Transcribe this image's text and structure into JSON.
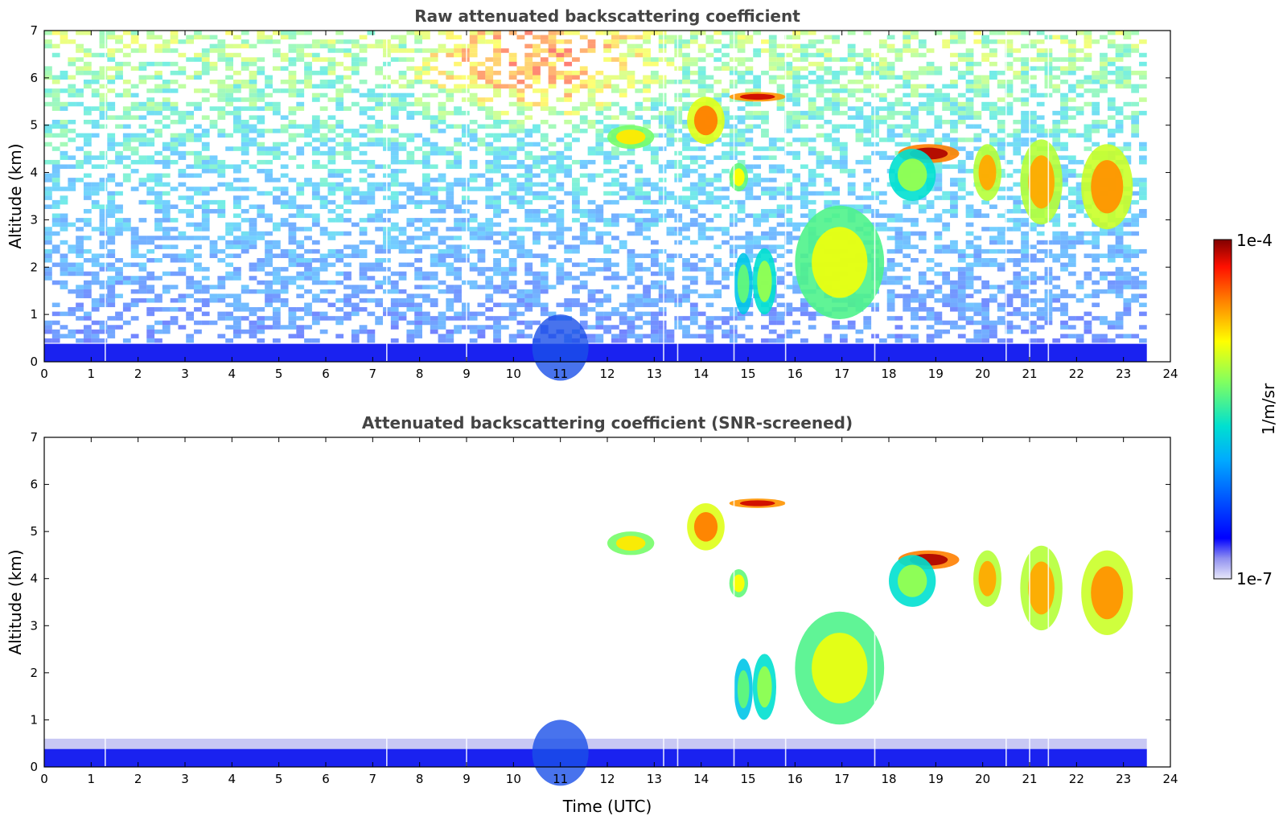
{
  "chart_data": [
    {
      "type": "heatmap",
      "title": "Raw attenuated backscattering coefficient",
      "xlabel": "",
      "ylabel": "Altitude (km)",
      "xlim": [
        0,
        24
      ],
      "ylim": [
        0,
        7
      ],
      "x_ticks": [
        "0",
        "1",
        "2",
        "3",
        "4",
        "5",
        "6",
        "7",
        "8",
        "9",
        "10",
        "11",
        "12",
        "13",
        "14",
        "15",
        "16",
        "17",
        "18",
        "19",
        "20",
        "21",
        "22",
        "23",
        "24"
      ],
      "y_ticks": [
        "0",
        "1",
        "2",
        "3",
        "4",
        "5",
        "6",
        "7"
      ],
      "data_end_time": 23.5,
      "boundary_layer_top_km": 0.4,
      "background": "noise",
      "features": [
        {
          "label": "low cloud",
          "t0": 14.7,
          "t1": 15.1,
          "z0": 1.0,
          "z1": 2.3,
          "level": 0.55
        },
        {
          "label": "low cloud",
          "t0": 15.1,
          "t1": 15.6,
          "z0": 1.0,
          "z1": 2.4,
          "level": 0.6
        },
        {
          "label": "low cloud",
          "t0": 16.0,
          "t1": 17.9,
          "z0": 0.9,
          "z1": 3.3,
          "level": 0.68
        },
        {
          "label": "mid cloud",
          "t0": 14.6,
          "t1": 15.0,
          "z0": 3.6,
          "z1": 4.2,
          "level": 0.7
        },
        {
          "label": "mid cloud",
          "t0": 13.7,
          "t1": 14.5,
          "z0": 4.6,
          "z1": 5.6,
          "level": 0.82
        },
        {
          "label": "mid cloud",
          "t0": 12.0,
          "t1": 13.0,
          "z0": 4.5,
          "z1": 5.0,
          "level": 0.72
        },
        {
          "label": "thin layer",
          "t0": 14.6,
          "t1": 15.8,
          "z0": 5.5,
          "z1": 5.7,
          "level": 0.95
        },
        {
          "label": "thin layer",
          "t0": 18.2,
          "t1": 19.5,
          "z0": 4.2,
          "z1": 4.6,
          "level": 0.97
        },
        {
          "label": "mid cloud",
          "t0": 18.0,
          "t1": 19.0,
          "z0": 3.4,
          "z1": 4.5,
          "level": 0.6
        },
        {
          "label": "mid cloud",
          "t0": 19.8,
          "t1": 20.4,
          "z0": 3.4,
          "z1": 4.6,
          "level": 0.78
        },
        {
          "label": "mid cloud",
          "t0": 20.8,
          "t1": 21.7,
          "z0": 2.9,
          "z1": 4.7,
          "level": 0.78
        },
        {
          "label": "mid cloud",
          "t0": 22.1,
          "t1": 23.2,
          "z0": 2.8,
          "z1": 4.6,
          "level": 0.8
        }
      ]
    },
    {
      "type": "heatmap",
      "title": "Attenuated backscattering coefficient (SNR-screened)",
      "xlabel": "Time (UTC)",
      "ylabel": "Altitude (km)",
      "xlim": [
        0,
        24
      ],
      "ylim": [
        0,
        7
      ],
      "x_ticks": [
        "0",
        "1",
        "2",
        "3",
        "4",
        "5",
        "6",
        "7",
        "8",
        "9",
        "10",
        "11",
        "12",
        "13",
        "14",
        "15",
        "16",
        "17",
        "18",
        "19",
        "20",
        "21",
        "22",
        "23",
        "24"
      ],
      "y_ticks": [
        "0",
        "1",
        "2",
        "3",
        "4",
        "5",
        "6",
        "7"
      ],
      "data_end_time": 23.5,
      "boundary_layer_top_km": 0.6,
      "background": "white"
    }
  ],
  "colorbar": {
    "label": "1/m/sr",
    "max_label": "1e-4",
    "min_label": "1e-7",
    "scale": "log"
  }
}
